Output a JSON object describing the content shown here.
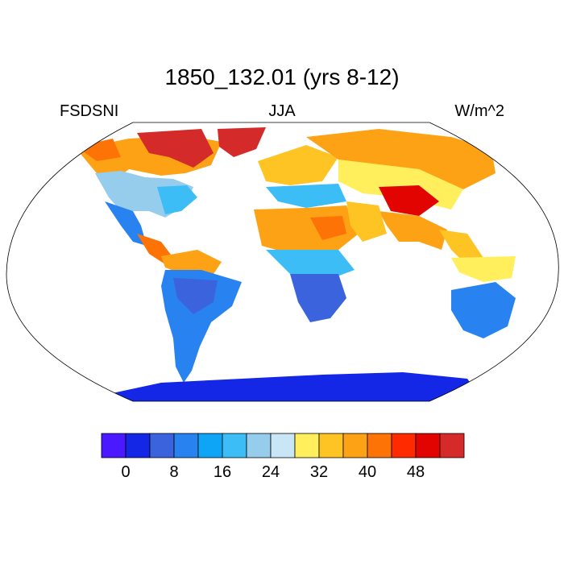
{
  "title": "1850_132.01 (yrs 8-12)",
  "left_label": "FSDSNI",
  "center_label": "JJA",
  "right_label": "W/m^2",
  "colorbar": {
    "colors": [
      "#4b19ff",
      "#1427e6",
      "#3b63dd",
      "#2883f1",
      "#0fa5f6",
      "#3cbdf6",
      "#96ccec",
      "#c8e6f6",
      "#ffef5c",
      "#fdc423",
      "#fda214",
      "#fe7305",
      "#ff2a00",
      "#e10400",
      "#d42a29"
    ],
    "tick_labels": [
      "0",
      "8",
      "16",
      "24",
      "32",
      "40",
      "48"
    ]
  },
  "map": {
    "projection": "Robinson",
    "ocean_color": "#ffffff",
    "outline_color": "#000000"
  }
}
